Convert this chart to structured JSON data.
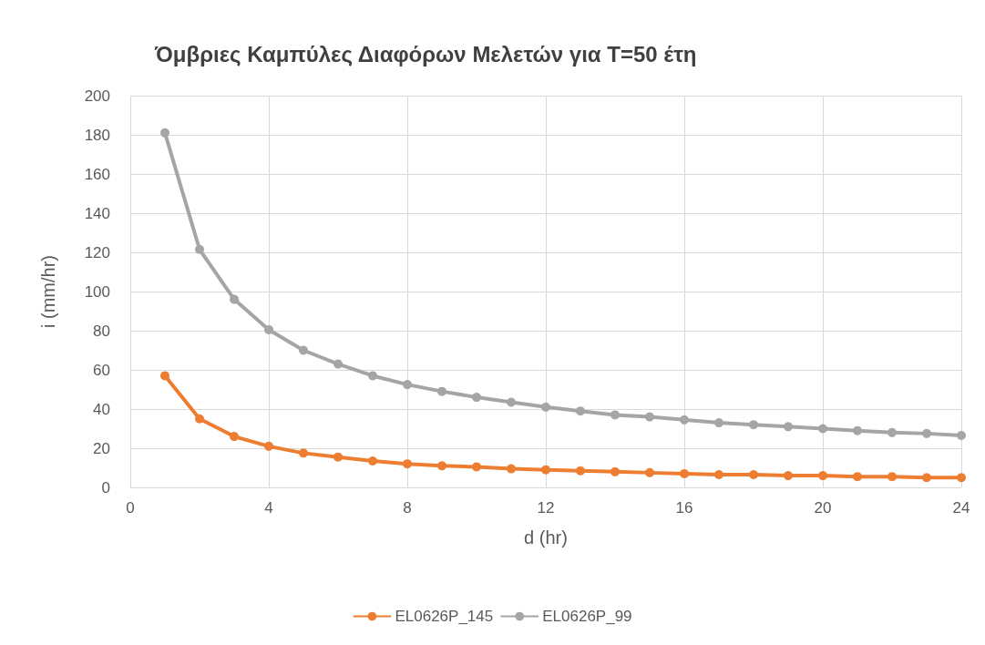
{
  "chart_data": {
    "type": "line",
    "title": "Όμβριες Καμπύλες Διαφόρων Μελετών για Τ=50 έτη",
    "xlabel": "d (hr)",
    "ylabel": "i (mm/hr)",
    "x": [
      1,
      2,
      3,
      4,
      5,
      6,
      7,
      8,
      9,
      10,
      11,
      12,
      13,
      14,
      15,
      16,
      17,
      18,
      19,
      20,
      21,
      22,
      23,
      24
    ],
    "series": [
      {
        "name": "EL0626P_145",
        "color": "#ed7d31",
        "values": [
          57,
          35,
          26,
          21,
          17.5,
          15.5,
          13.5,
          12,
          11,
          10.5,
          9.5,
          9,
          8.5,
          8,
          7.5,
          7,
          6.5,
          6.5,
          6,
          6,
          5.5,
          5.5,
          5,
          5
        ]
      },
      {
        "name": "EL0626P_99",
        "color": "#a5a5a5",
        "values": [
          181,
          121.5,
          96,
          80.5,
          70,
          63,
          57,
          52.5,
          49,
          46,
          43.5,
          41,
          39,
          37,
          36,
          34.5,
          33,
          32,
          31,
          30,
          29,
          28,
          27.5,
          26.5
        ]
      }
    ],
    "xlim": [
      0,
      24
    ],
    "xticks": [
      0,
      4,
      8,
      12,
      16,
      20,
      24
    ],
    "ylim": [
      0,
      200
    ],
    "yticks": [
      0,
      20,
      40,
      60,
      80,
      100,
      120,
      140,
      160,
      180,
      200
    ],
    "grid": true,
    "legend": "bottom",
    "marker": "circle",
    "line_style": "solid"
  }
}
